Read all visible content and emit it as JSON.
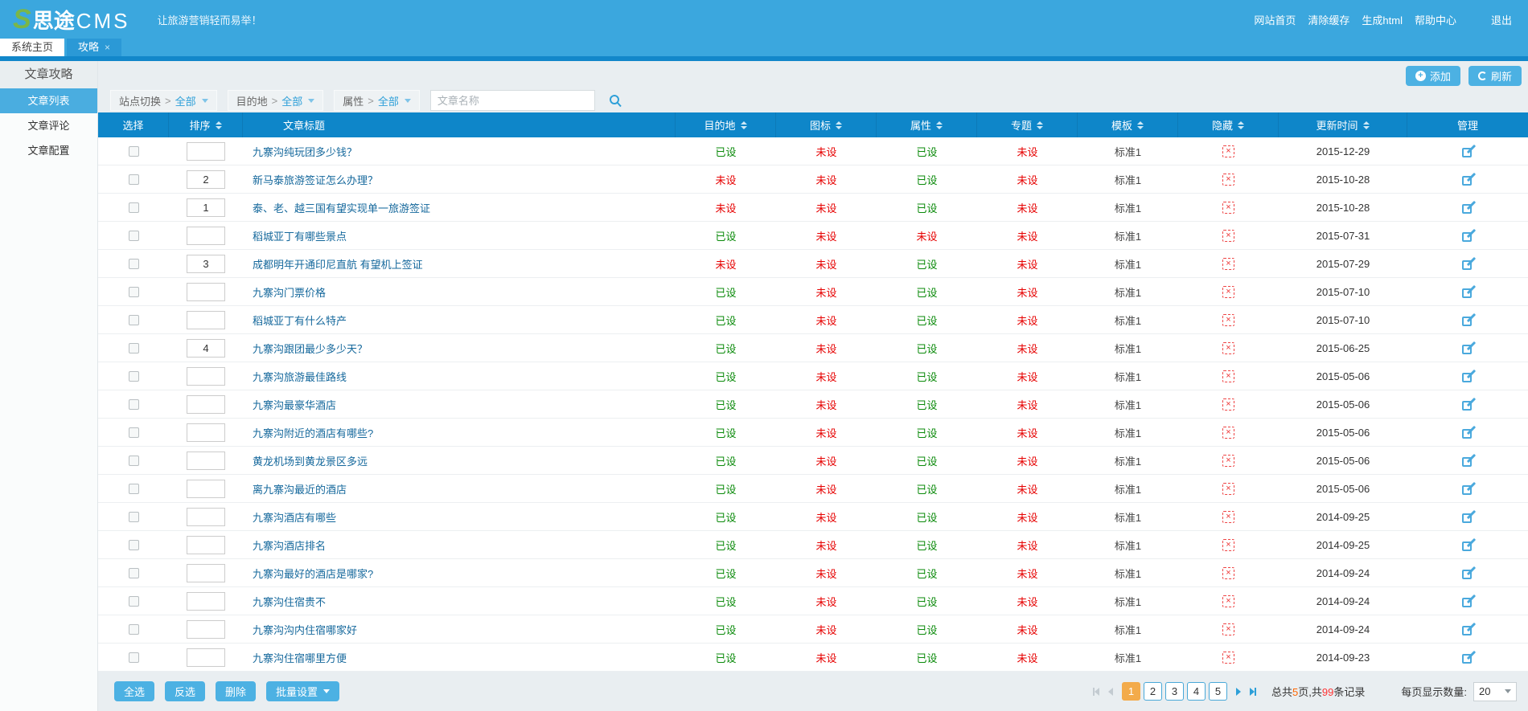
{
  "colors": {
    "topbar": "#3ba7de",
    "tab_active": "#2b99d6",
    "tab_bar": "#1287ca",
    "table_header": "#0e86c9",
    "sidebar_active": "#4aade0",
    "button": "#4cb1e3",
    "status_set": "#0a8a0a",
    "status_unset": "#e60000",
    "link": "#15689c",
    "page_active": "#f3ab4b",
    "logo_s_green": "#7ab648"
  },
  "header": {
    "logo_s": "S",
    "logo_name": "思途",
    "logo_suffix": "CMS",
    "tagline": "让旅游营销轻而易举！",
    "links": [
      "网站首页",
      "清除缓存",
      "生成html",
      "帮助中心",
      "退出"
    ]
  },
  "tabs": [
    {
      "label": "系统主页",
      "active": false,
      "closable": false
    },
    {
      "label": "攻略",
      "active": true,
      "closable": true,
      "close_glyph": "×"
    }
  ],
  "sidebar": {
    "title": "文章攻略",
    "items": [
      {
        "label": "文章列表",
        "active": true
      },
      {
        "label": "文章评论",
        "active": false
      },
      {
        "label": "文章配置",
        "active": false
      }
    ]
  },
  "toolbar": {
    "add_label": "添加",
    "refresh_label": "刷新"
  },
  "filters": {
    "chips": [
      {
        "name": "site",
        "label": "站点切换",
        "separator": ">",
        "value": "全部"
      },
      {
        "name": "destination",
        "label": "目的地",
        "separator": ">",
        "value": "全部"
      },
      {
        "name": "attribute",
        "label": "属性",
        "separator": ">",
        "value": "全部"
      }
    ],
    "search_placeholder": "文章名称",
    "search_icon": "magnifier"
  },
  "table": {
    "columns": [
      {
        "key": "select",
        "label": "选择",
        "sortable": false,
        "cls": "c-select"
      },
      {
        "key": "sort",
        "label": "排序",
        "sortable": true,
        "cls": "c-sort"
      },
      {
        "key": "title",
        "label": "文章标题",
        "sortable": false,
        "cls": "c-title"
      },
      {
        "key": "destination",
        "label": "目的地",
        "sortable": true,
        "cls": "c-dest"
      },
      {
        "key": "icon",
        "label": "图标",
        "sortable": true,
        "cls": "c-icon"
      },
      {
        "key": "attribute",
        "label": "属性",
        "sortable": true,
        "cls": "c-attr"
      },
      {
        "key": "topic",
        "label": "专题",
        "sortable": true,
        "cls": "c-topic"
      },
      {
        "key": "template",
        "label": "模板",
        "sortable": true,
        "cls": "c-tmpl"
      },
      {
        "key": "hidden",
        "label": "隐藏",
        "sortable": true,
        "cls": "c-hide"
      },
      {
        "key": "updated",
        "label": "更新时间",
        "sortable": true,
        "cls": "c-time"
      },
      {
        "key": "manage",
        "label": "管理",
        "sortable": false,
        "cls": "c-manage"
      }
    ],
    "set_label": "已设",
    "unset_label": "未设",
    "hidden_glyph": "×",
    "rows": [
      {
        "sort": "",
        "title": "九寨沟纯玩团多少钱？",
        "destination": "已设",
        "icon": "未设",
        "attribute": "已设",
        "topic": "未设",
        "template": "标准1",
        "updated": "2015-12-29"
      },
      {
        "sort": "2",
        "title": "新马泰旅游签证怎么办理？",
        "destination": "未设",
        "icon": "未设",
        "attribute": "已设",
        "topic": "未设",
        "template": "标准1",
        "updated": "2015-10-28"
      },
      {
        "sort": "1",
        "title": "泰、老、越三国有望实现单一旅游签证",
        "destination": "未设",
        "icon": "未设",
        "attribute": "已设",
        "topic": "未设",
        "template": "标准1",
        "updated": "2015-10-28"
      },
      {
        "sort": "",
        "title": "稻城亚丁有哪些景点",
        "destination": "已设",
        "icon": "未设",
        "attribute": "未设",
        "topic": "未设",
        "template": "标准1",
        "updated": "2015-07-31"
      },
      {
        "sort": "3",
        "title": "成都明年开通印尼直航 有望机上签证",
        "destination": "未设",
        "icon": "未设",
        "attribute": "已设",
        "topic": "未设",
        "template": "标准1",
        "updated": "2015-07-29"
      },
      {
        "sort": "",
        "title": "九寨沟门票价格",
        "destination": "已设",
        "icon": "未设",
        "attribute": "已设",
        "topic": "未设",
        "template": "标准1",
        "updated": "2015-07-10"
      },
      {
        "sort": "",
        "title": "稻城亚丁有什么特产",
        "destination": "已设",
        "icon": "未设",
        "attribute": "已设",
        "topic": "未设",
        "template": "标准1",
        "updated": "2015-07-10"
      },
      {
        "sort": "4",
        "title": "九寨沟跟团最少多少天？",
        "destination": "已设",
        "icon": "未设",
        "attribute": "已设",
        "topic": "未设",
        "template": "标准1",
        "updated": "2015-06-25"
      },
      {
        "sort": "",
        "title": "九寨沟旅游最佳路线",
        "destination": "已设",
        "icon": "未设",
        "attribute": "已设",
        "topic": "未设",
        "template": "标准1",
        "updated": "2015-05-06"
      },
      {
        "sort": "",
        "title": "九寨沟最豪华酒店",
        "destination": "已设",
        "icon": "未设",
        "attribute": "已设",
        "topic": "未设",
        "template": "标准1",
        "updated": "2015-05-06"
      },
      {
        "sort": "",
        "title": "九寨沟附近的酒店有哪些?",
        "destination": "已设",
        "icon": "未设",
        "attribute": "已设",
        "topic": "未设",
        "template": "标准1",
        "updated": "2015-05-06"
      },
      {
        "sort": "",
        "title": "黄龙机场到黄龙景区多远",
        "destination": "已设",
        "icon": "未设",
        "attribute": "已设",
        "topic": "未设",
        "template": "标准1",
        "updated": "2015-05-06"
      },
      {
        "sort": "",
        "title": "离九寨沟最近的酒店",
        "destination": "已设",
        "icon": "未设",
        "attribute": "已设",
        "topic": "未设",
        "template": "标准1",
        "updated": "2015-05-06"
      },
      {
        "sort": "",
        "title": "九寨沟酒店有哪些",
        "destination": "已设",
        "icon": "未设",
        "attribute": "已设",
        "topic": "未设",
        "template": "标准1",
        "updated": "2014-09-25"
      },
      {
        "sort": "",
        "title": "九寨沟酒店排名",
        "destination": "已设",
        "icon": "未设",
        "attribute": "已设",
        "topic": "未设",
        "template": "标准1",
        "updated": "2014-09-25"
      },
      {
        "sort": "",
        "title": "九寨沟最好的酒店是哪家?",
        "destination": "已设",
        "icon": "未设",
        "attribute": "已设",
        "topic": "未设",
        "template": "标准1",
        "updated": "2014-09-24"
      },
      {
        "sort": "",
        "title": "九寨沟住宿贵不",
        "destination": "已设",
        "icon": "未设",
        "attribute": "已设",
        "topic": "未设",
        "template": "标准1",
        "updated": "2014-09-24"
      },
      {
        "sort": "",
        "title": "九寨沟沟内住宿哪家好",
        "destination": "已设",
        "icon": "未设",
        "attribute": "已设",
        "topic": "未设",
        "template": "标准1",
        "updated": "2014-09-24"
      },
      {
        "sort": "",
        "title": "九寨沟住宿哪里方便",
        "destination": "已设",
        "icon": "未设",
        "attribute": "已设",
        "topic": "未设",
        "template": "标准1",
        "updated": "2014-09-23"
      }
    ]
  },
  "footer": {
    "buttons": [
      "全选",
      "反选",
      "删除"
    ],
    "batch_label": "批量设置",
    "pagination": {
      "pages": [
        "1",
        "2",
        "3",
        "4",
        "5"
      ],
      "active_page": "1",
      "summary_prefix": "总共",
      "total_pages": "5",
      "summary_mid": "页,共",
      "total_records": "99",
      "summary_suffix": "条记录",
      "per_page_label": "每页显示数量:",
      "per_page_value": "20"
    }
  }
}
